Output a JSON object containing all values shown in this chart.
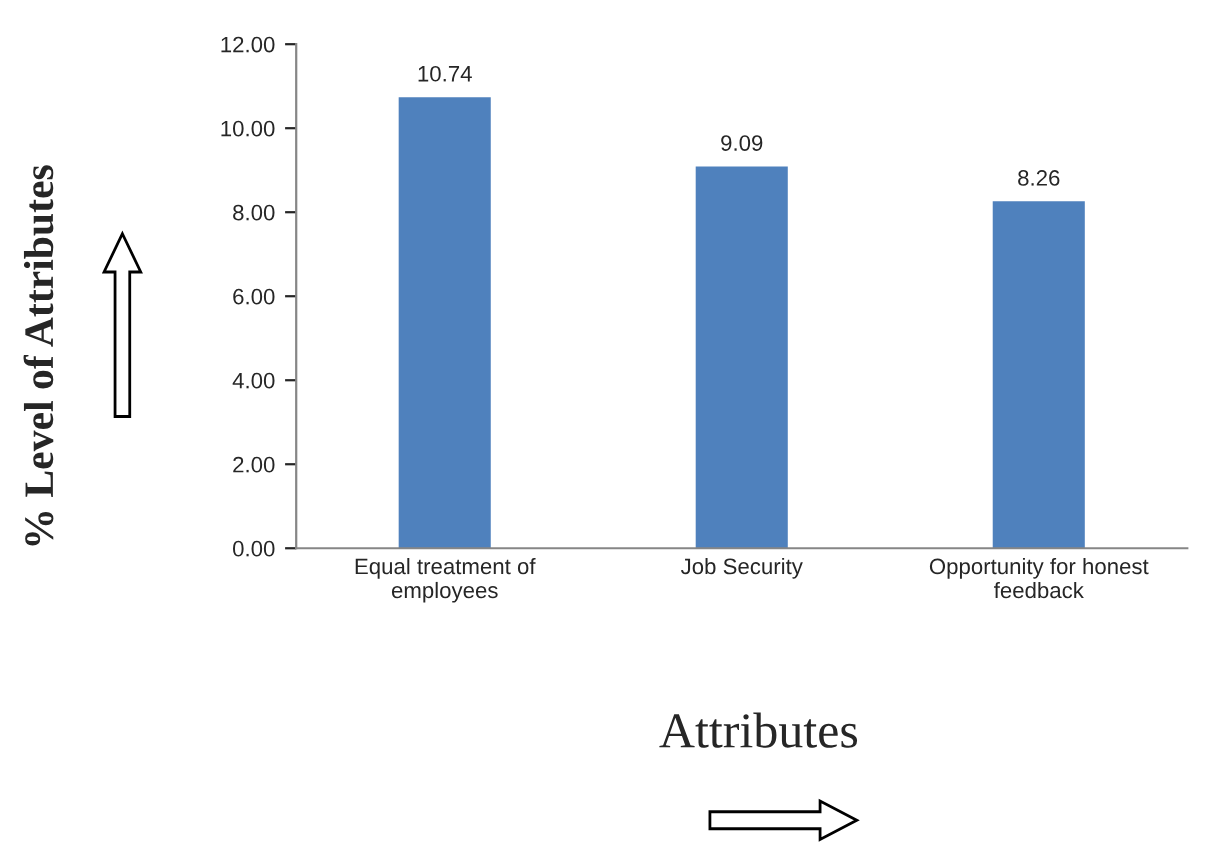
{
  "chart_data": {
    "type": "bar",
    "categories": [
      "Equal treatment of\nemployees",
      "Job Security",
      "Opportunity for honest\nfeedback"
    ],
    "values": [
      10.74,
      9.09,
      8.26
    ],
    "color": "#4f81bd",
    "ylim": [
      0,
      12
    ],
    "yticks": [
      {
        "value": 0,
        "label": "0.00"
      },
      {
        "value": 2,
        "label": "2.00"
      },
      {
        "value": 4,
        "label": "4.00"
      },
      {
        "value": 6,
        "label": "6.00"
      },
      {
        "value": 8,
        "label": "8.00"
      },
      {
        "value": 10,
        "label": "10.00"
      },
      {
        "value": 12,
        "label": "12.00"
      }
    ],
    "data_labels": true,
    "xlabel": "Attributes",
    "ylabel": "% Level of Attributes"
  }
}
